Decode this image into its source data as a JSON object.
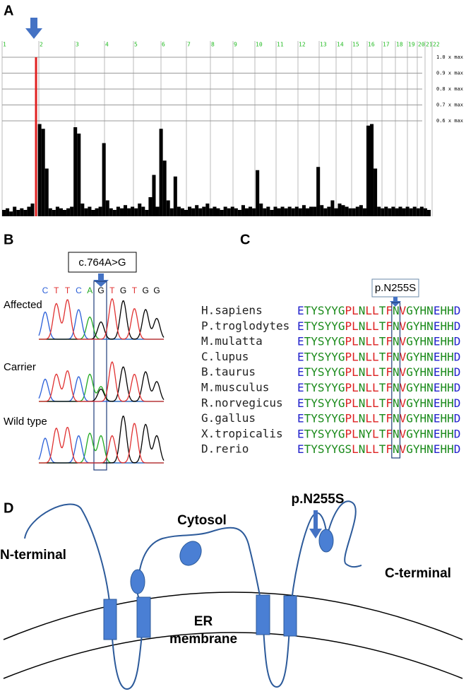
{
  "panels": [
    "A",
    "B",
    "C",
    "D"
  ],
  "chart_data": {
    "type": "bar",
    "chromosomes": [
      1,
      2,
      3,
      4,
      5,
      6,
      7,
      8,
      9,
      10,
      11,
      12,
      13,
      14,
      15,
      16,
      17,
      18,
      19,
      20,
      21,
      22
    ],
    "ylim": [
      0,
      1
    ],
    "yticks": [
      {
        "value": 1.0,
        "label": "1.0 x max"
      },
      {
        "value": 0.9,
        "label": "0.9 x max"
      },
      {
        "value": 0.8,
        "label": "0.8 x max"
      },
      {
        "value": 0.7,
        "label": "0.7 x max"
      },
      {
        "value": 0.6,
        "label": "0.6 x max"
      }
    ],
    "color": "#000000",
    "highlight_color": "#e02020",
    "highlight": [
      9
    ],
    "values": [
      0.04,
      0.05,
      0.03,
      0.06,
      0.04,
      0.05,
      0.04,
      0.06,
      0.08,
      1.0,
      0.58,
      0.55,
      0.3,
      0.05,
      0.04,
      0.06,
      0.05,
      0.04,
      0.05,
      0.06,
      0.56,
      0.52,
      0.08,
      0.05,
      0.06,
      0.04,
      0.05,
      0.06,
      0.46,
      0.1,
      0.05,
      0.04,
      0.06,
      0.05,
      0.07,
      0.05,
      0.06,
      0.05,
      0.08,
      0.06,
      0.04,
      0.12,
      0.26,
      0.06,
      0.55,
      0.35,
      0.1,
      0.05,
      0.25,
      0.06,
      0.05,
      0.04,
      0.06,
      0.05,
      0.07,
      0.05,
      0.06,
      0.08,
      0.05,
      0.06,
      0.05,
      0.04,
      0.06,
      0.05,
      0.06,
      0.05,
      0.04,
      0.07,
      0.05,
      0.06,
      0.05,
      0.29,
      0.08,
      0.05,
      0.06,
      0.04,
      0.06,
      0.05,
      0.06,
      0.05,
      0.06,
      0.05,
      0.06,
      0.05,
      0.07,
      0.05,
      0.06,
      0.06,
      0.31,
      0.07,
      0.05,
      0.06,
      0.1,
      0.05,
      0.08,
      0.07,
      0.06,
      0.05,
      0.05,
      0.06,
      0.07,
      0.05,
      0.57,
      0.58,
      0.3,
      0.06,
      0.05,
      0.06,
      0.05,
      0.06,
      0.05,
      0.06,
      0.05,
      0.06,
      0.05,
      0.06,
      0.05,
      0.06,
      0.05,
      0.04
    ]
  },
  "chromatogram": {
    "mutation": "c.764A>G",
    "sequence": [
      "C",
      "T",
      "T",
      "C",
      "A",
      "G",
      "T",
      "G",
      "T",
      "G",
      "G"
    ],
    "base_colors": {
      "A": "#22aa22",
      "C": "#2a5fd8",
      "G": "#000000",
      "T": "#e03030"
    },
    "rows": [
      {
        "label": "Affected",
        "peaks": [
          {
            "C": 0.55
          },
          {
            "T": 0.72
          },
          {
            "T": 0.8
          },
          {
            "C": 0.6
          },
          {
            "A": 0.45
          },
          {
            "G": 0.35
          },
          {
            "T": 0.82
          },
          {
            "G": 0.78
          },
          {
            "T": 0.62
          },
          {
            "G": 0.6
          },
          {
            "G": 0.42
          }
        ]
      },
      {
        "label": "Carrier",
        "peaks": [
          {
            "C": 0.45
          },
          {
            "T": 0.55
          },
          {
            "T": 0.62
          },
          {
            "C": 0.5
          },
          {
            "A": 0.55
          },
          {
            "G": 0.25,
            "A": 0.3
          },
          {
            "T": 0.8
          },
          {
            "G": 0.7
          },
          {
            "T": 0.55
          },
          {
            "G": 0.6
          },
          {
            "G": 0.4
          }
        ]
      },
      {
        "label": "Wild type",
        "peaks": [
          {
            "C": 0.5
          },
          {
            "T": 0.7
          },
          {
            "T": 0.72
          },
          {
            "C": 0.55
          },
          {
            "A": 0.6
          },
          {
            "A": 0.55
          },
          {
            "T": 0.55
          },
          {
            "G": 0.95
          },
          {
            "T": 0.8
          },
          {
            "G": 0.78
          },
          {
            "G": 0.55
          }
        ]
      }
    ]
  },
  "alignment": {
    "mutation": "p.N255S",
    "residue_colors": {
      "D": "#2222cc",
      "E": "#2222cc",
      "P": "#dd2222",
      "L": "#dd2222",
      "F": "#dd2222",
      "V": "#dd2222",
      "other": "#1a8a1a"
    },
    "species": [
      {
        "name": "H.sapiens",
        "sequence": "ETYSYYGPLNLLTFNVGYHNEHHD"
      },
      {
        "name": "P.troglodytes",
        "sequence": "ETYSYYGPLNLLTFNVGYHNEHHD"
      },
      {
        "name": "M.mulatta",
        "sequence": "ETYSYYGPLNLLTFNVGYHNEHHD"
      },
      {
        "name": "C.lupus",
        "sequence": "ETYSYYGPLNLLTFNVGYHNEHHD"
      },
      {
        "name": "B.taurus",
        "sequence": "ETYSYYGPLNLLTFNVGYHNEHHD"
      },
      {
        "name": "M.musculus",
        "sequence": "ETYSYYGPLNLLTFNVGYHNEHHD"
      },
      {
        "name": "R.norvegicus",
        "sequence": "ETYSYYGPLNLLTFNVGYHNEHHD"
      },
      {
        "name": "G.gallus",
        "sequence": "ETYSYYGPLNLLTFNVGYHNEHHD"
      },
      {
        "name": "X.tropicalis",
        "sequence": "ETYSYYGPLNYLTFNVGYHNEHHD"
      },
      {
        "name": "D.rerio",
        "sequence": "ETYSYYGSLNLLTFNVGYHNEHHD"
      }
    ]
  },
  "topology": {
    "cytosol": "Cytosol",
    "n_terminal": "N-terminal",
    "c_terminal": "C-terminal",
    "membrane": [
      "ER",
      "membrane"
    ],
    "mutation": "p.N255S"
  }
}
